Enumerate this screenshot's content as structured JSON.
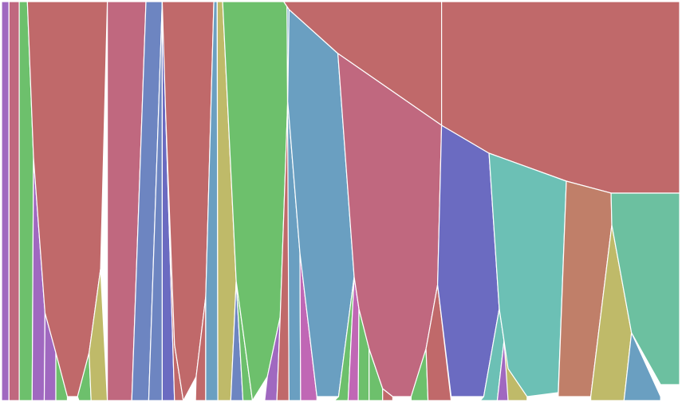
{
  "chart_data": {
    "type": "area",
    "title": "",
    "xlabel": "",
    "ylabel": "",
    "legend": "none",
    "grid": false,
    "x_range": [
      0,
      1
    ],
    "y_range": [
      0,
      1
    ],
    "colors": {
      "red": "#c0696a",
      "pink": "#c0687f",
      "green": "#6dc06c",
      "blue": "#6a9fc1",
      "slate": "#6d85c1",
      "indigo": "#6b6bc1",
      "purple": "#a068c0",
      "magenta": "#c067b5",
      "olive": "#bfba69",
      "teal": "#6cc0b5",
      "seafoam": "#6cc0a0",
      "terracotta": "#c07f69"
    },
    "series": [
      {
        "color": "purple",
        "points": [
          [
            0.0,
            1.0
          ],
          [
            0.011,
            1.0
          ],
          [
            0.011,
            0.0
          ],
          [
            0.0,
            0.0
          ]
        ]
      },
      {
        "color": "pink",
        "points": [
          [
            0.011,
            1.0
          ],
          [
            0.026,
            1.0
          ],
          [
            0.026,
            0.0
          ],
          [
            0.011,
            0.0
          ]
        ]
      },
      {
        "color": "green",
        "points": [
          [
            0.026,
            1.0
          ],
          [
            0.038,
            1.0
          ],
          [
            0.047,
            0.61
          ],
          [
            0.045,
            0.0
          ],
          [
            0.026,
            0.0
          ]
        ]
      },
      {
        "color": "purple",
        "points": [
          [
            0.047,
            0.61
          ],
          [
            0.064,
            0.22
          ],
          [
            0.063,
            0.0
          ],
          [
            0.045,
            0.0
          ]
        ]
      },
      {
        "color": "purple",
        "points": [
          [
            0.064,
            0.22
          ],
          [
            0.08,
            0.12
          ],
          [
            0.08,
            0.0
          ],
          [
            0.063,
            0.0
          ]
        ]
      },
      {
        "color": "green",
        "points": [
          [
            0.08,
            0.12
          ],
          [
            0.097,
            0.01
          ],
          [
            0.097,
            0.0
          ],
          [
            0.08,
            0.0
          ]
        ]
      },
      {
        "color": "red",
        "points": [
          [
            0.038,
            1.0
          ],
          [
            0.156,
            1.0
          ],
          [
            0.146,
            0.33
          ],
          [
            0.129,
            0.12
          ],
          [
            0.112,
            0.01
          ],
          [
            0.097,
            0.01
          ],
          [
            0.08,
            0.12
          ],
          [
            0.064,
            0.22
          ],
          [
            0.047,
            0.61
          ]
        ]
      },
      {
        "color": "green",
        "points": [
          [
            0.112,
            0.01
          ],
          [
            0.129,
            0.12
          ],
          [
            0.132,
            0.0
          ],
          [
            0.114,
            0.0
          ]
        ]
      },
      {
        "color": "olive",
        "points": [
          [
            0.129,
            0.12
          ],
          [
            0.146,
            0.33
          ],
          [
            0.156,
            0.0
          ],
          [
            0.132,
            0.0
          ]
        ]
      },
      {
        "color": "pink",
        "points": [
          [
            0.156,
            1.0
          ],
          [
            0.213,
            1.0
          ],
          [
            0.192,
            0.0
          ],
          [
            0.156,
            0.0
          ]
        ]
      },
      {
        "color": "slate",
        "points": [
          [
            0.213,
            1.0
          ],
          [
            0.237,
            1.0
          ],
          [
            0.217,
            0.0
          ],
          [
            0.192,
            0.0
          ]
        ]
      },
      {
        "color": "slate",
        "points": [
          [
            0.237,
            1.0
          ],
          [
            0.237,
            0.0
          ],
          [
            0.217,
            0.0
          ]
        ]
      },
      {
        "color": "indigo",
        "points": [
          [
            0.237,
            1.0
          ],
          [
            0.242,
            0.72
          ],
          [
            0.255,
            0.0
          ],
          [
            0.237,
            0.0
          ]
        ]
      },
      {
        "color": "red",
        "points": [
          [
            0.242,
            0.72
          ],
          [
            0.255,
            0.14
          ],
          [
            0.268,
            0.0
          ],
          [
            0.255,
            0.0
          ]
        ]
      },
      {
        "color": "red",
        "points": [
          [
            0.237,
            1.0
          ],
          [
            0.313,
            1.0
          ],
          [
            0.301,
            0.26
          ],
          [
            0.287,
            0.06
          ],
          [
            0.268,
            0.0
          ],
          [
            0.255,
            0.14
          ],
          [
            0.242,
            0.72
          ]
        ]
      },
      {
        "color": "red",
        "points": [
          [
            0.287,
            0.06
          ],
          [
            0.301,
            0.26
          ],
          [
            0.301,
            0.0
          ],
          [
            0.286,
            0.0
          ]
        ]
      },
      {
        "color": "blue",
        "points": [
          [
            0.313,
            1.0
          ],
          [
            0.318,
            1.0
          ],
          [
            0.319,
            0.0
          ],
          [
            0.301,
            0.0
          ],
          [
            0.301,
            0.26
          ]
        ]
      },
      {
        "color": "olive",
        "points": [
          [
            0.318,
            1.0
          ],
          [
            0.326,
            1.0
          ],
          [
            0.346,
            0.3
          ],
          [
            0.338,
            0.0
          ],
          [
            0.319,
            0.0
          ]
        ]
      },
      {
        "color": "slate",
        "points": [
          [
            0.346,
            0.3
          ],
          [
            0.356,
            0.0
          ],
          [
            0.338,
            0.0
          ]
        ]
      },
      {
        "color": "green",
        "points": [
          [
            0.346,
            0.3
          ],
          [
            0.37,
            0.0
          ],
          [
            0.356,
            0.0
          ]
        ]
      },
      {
        "color": "green",
        "points": [
          [
            0.326,
            1.0
          ],
          [
            0.421,
            1.0
          ],
          [
            0.422,
            0.75
          ],
          [
            0.411,
            0.21
          ],
          [
            0.392,
            0.06
          ],
          [
            0.37,
            0.0
          ],
          [
            0.346,
            0.3
          ]
        ]
      },
      {
        "color": "purple",
        "points": [
          [
            0.392,
            0.06
          ],
          [
            0.411,
            0.21
          ],
          [
            0.406,
            0.0
          ],
          [
            0.388,
            0.0
          ]
        ]
      },
      {
        "color": "red",
        "points": [
          [
            0.411,
            0.21
          ],
          [
            0.422,
            0.75
          ],
          [
            0.424,
            0.0
          ],
          [
            0.406,
            0.0
          ]
        ]
      },
      {
        "color": "blue",
        "points": [
          [
            0.421,
            1.0
          ],
          [
            0.424,
            0.98
          ],
          [
            0.422,
            0.75
          ],
          [
            0.44,
            0.37
          ],
          [
            0.441,
            0.0
          ],
          [
            0.424,
            0.0
          ]
        ]
      },
      {
        "color": "magenta",
        "points": [
          [
            0.44,
            0.37
          ],
          [
            0.465,
            0.01
          ],
          [
            0.465,
            0.0
          ],
          [
            0.441,
            0.0
          ]
        ]
      },
      {
        "color": "blue",
        "points": [
          [
            0.424,
            0.98
          ],
          [
            0.496,
            0.87
          ],
          [
            0.52,
            0.31
          ],
          [
            0.497,
            0.01
          ],
          [
            0.465,
            0.01
          ],
          [
            0.44,
            0.37
          ],
          [
            0.422,
            0.75
          ]
        ]
      },
      {
        "color": "green",
        "points": [
          [
            0.497,
            0.01
          ],
          [
            0.52,
            0.31
          ],
          [
            0.511,
            0.0
          ],
          [
            0.491,
            0.0
          ]
        ]
      },
      {
        "color": "magenta",
        "points": [
          [
            0.52,
            0.31
          ],
          [
            0.527,
            0.23
          ],
          [
            0.526,
            0.0
          ],
          [
            0.511,
            0.0
          ]
        ]
      },
      {
        "color": "green",
        "points": [
          [
            0.527,
            0.23
          ],
          [
            0.542,
            0.13
          ],
          [
            0.542,
            0.0
          ],
          [
            0.526,
            0.0
          ]
        ]
      },
      {
        "color": "green",
        "points": [
          [
            0.542,
            0.13
          ],
          [
            0.562,
            0.03
          ],
          [
            0.562,
            0.0
          ],
          [
            0.542,
            0.0
          ]
        ]
      },
      {
        "color": "red",
        "points": [
          [
            0.562,
            0.03
          ],
          [
            0.577,
            0.01
          ],
          [
            0.577,
            0.0
          ],
          [
            0.562,
            0.0
          ]
        ]
      },
      {
        "color": "red",
        "points": [
          [
            0.424,
            0.98
          ],
          [
            0.416,
            1.0
          ],
          [
            0.649,
            1.0
          ],
          [
            0.649,
            0.69
          ],
          [
            0.496,
            0.87
          ]
        ]
      },
      {
        "color": "pink",
        "points": [
          [
            0.496,
            0.87
          ],
          [
            0.649,
            0.69
          ],
          [
            0.643,
            0.29
          ],
          [
            0.626,
            0.13
          ],
          [
            0.604,
            0.01
          ],
          [
            0.577,
            0.01
          ],
          [
            0.562,
            0.03
          ],
          [
            0.542,
            0.13
          ],
          [
            0.527,
            0.23
          ],
          [
            0.52,
            0.31
          ]
        ]
      },
      {
        "color": "green",
        "points": [
          [
            0.604,
            0.01
          ],
          [
            0.626,
            0.13
          ],
          [
            0.629,
            0.0
          ],
          [
            0.604,
            0.0
          ]
        ]
      },
      {
        "color": "red",
        "points": [
          [
            0.626,
            0.13
          ],
          [
            0.643,
            0.29
          ],
          [
            0.663,
            0.0
          ],
          [
            0.629,
            0.0
          ]
        ]
      },
      {
        "color": "indigo",
        "points": [
          [
            0.649,
            0.69
          ],
          [
            0.719,
            0.62
          ],
          [
            0.734,
            0.23
          ],
          [
            0.711,
            0.01
          ],
          [
            0.663,
            0.01
          ],
          [
            0.643,
            0.29
          ]
        ]
      },
      {
        "color": "teal",
        "points": [
          [
            0.734,
            0.23
          ],
          [
            0.741,
            0.15
          ],
          [
            0.731,
            0.0
          ],
          [
            0.706,
            0.0
          ],
          [
            0.711,
            0.01
          ]
        ]
      },
      {
        "color": "purple",
        "points": [
          [
            0.741,
            0.15
          ],
          [
            0.747,
            0.08
          ],
          [
            0.747,
            0.0
          ],
          [
            0.731,
            0.0
          ]
        ]
      },
      {
        "color": "olive",
        "points": [
          [
            0.741,
            0.15
          ],
          [
            0.775,
            0.01
          ],
          [
            0.775,
            0.0
          ],
          [
            0.747,
            0.0
          ]
        ]
      },
      {
        "color": "red",
        "points": [
          [
            0.649,
            0.69
          ],
          [
            0.719,
            0.62
          ],
          [
            0.833,
            0.55
          ],
          [
            0.899,
            0.52
          ],
          [
            1.0,
            0.52
          ],
          [
            1.0,
            1.0
          ],
          [
            0.649,
            1.0
          ]
        ]
      },
      {
        "color": "teal",
        "points": [
          [
            0.719,
            0.62
          ],
          [
            0.833,
            0.55
          ],
          [
            0.821,
            0.02
          ],
          [
            0.775,
            0.01
          ],
          [
            0.747,
            0.08
          ],
          [
            0.741,
            0.15
          ],
          [
            0.734,
            0.23
          ]
        ]
      },
      {
        "color": "terracotta",
        "points": [
          [
            0.833,
            0.55
          ],
          [
            0.899,
            0.52
          ],
          [
            0.9,
            0.44
          ],
          [
            0.869,
            0.01
          ],
          [
            0.821,
            0.01
          ]
        ]
      },
      {
        "color": "olive",
        "points": [
          [
            0.9,
            0.44
          ],
          [
            0.929,
            0.17
          ],
          [
            0.918,
            0.0
          ],
          [
            0.869,
            0.0
          ],
          [
            0.869,
            0.01
          ]
        ]
      },
      {
        "color": "blue",
        "points": [
          [
            0.929,
            0.17
          ],
          [
            0.972,
            0.01
          ],
          [
            0.972,
            0.0
          ],
          [
            0.918,
            0.0
          ]
        ]
      },
      {
        "color": "seafoam",
        "points": [
          [
            0.899,
            0.52
          ],
          [
            1.0,
            0.52
          ],
          [
            1.0,
            0.04
          ],
          [
            0.972,
            0.04
          ],
          [
            0.929,
            0.17
          ],
          [
            0.9,
            0.44
          ]
        ]
      }
    ]
  }
}
